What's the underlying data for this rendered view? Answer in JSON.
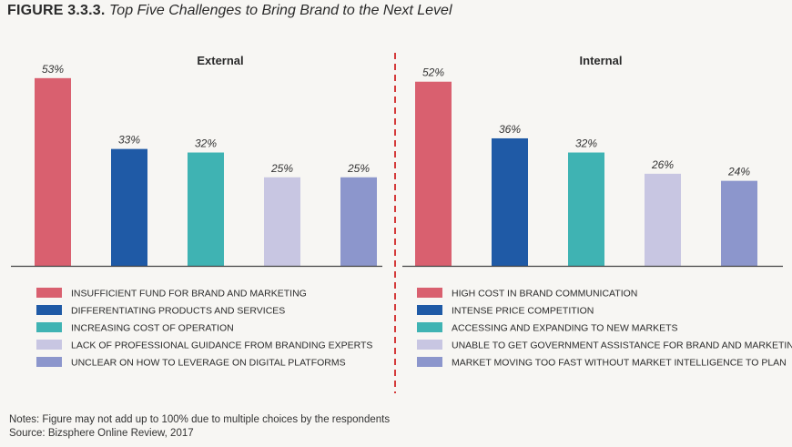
{
  "figure": {
    "number": "FIGURE 3.3.3.",
    "title": "Top Five Challenges to Bring Brand to the Next Level"
  },
  "colors": {
    "red": "#d9606f",
    "blue": "#1f5aa6",
    "teal": "#3fb3b3",
    "lavender": "#c8c6e2",
    "periwinkle": "#8c96cc",
    "divider": "#d43a3a",
    "axis": "#444444"
  },
  "chart_data": [
    {
      "type": "bar",
      "title": "External",
      "ylim": [
        0,
        60
      ],
      "categories": [
        "INSUFFICIENT FUND FOR BRAND AND MARKETING",
        "DIFFERENTIATING PRODUCTS AND SERVICES",
        "INCREASING COST OF OPERATION",
        "LACK OF PROFESSIONAL GUIDANCE FROM BRANDING EXPERTS",
        "UNCLEAR ON HOW TO LEVERAGE ON DIGITAL PLATFORMS"
      ],
      "values": [
        53,
        33,
        32,
        25,
        25
      ],
      "labels": [
        "53%",
        "33%",
        "32%",
        "25%",
        "25%"
      ],
      "colors": [
        "#d9606f",
        "#1f5aa6",
        "#3fb3b3",
        "#c8c6e2",
        "#8c96cc"
      ]
    },
    {
      "type": "bar",
      "title": "Internal",
      "ylim": [
        0,
        60
      ],
      "categories": [
        "HIGH COST IN BRAND COMMUNICATION",
        "INTENSE PRICE COMPETITION",
        "ACCESSING AND EXPANDING TO NEW MARKETS",
        "UNABLE TO GET GOVERNMENT ASSISTANCE FOR BRAND AND MARKETING",
        "MARKET MOVING TOO FAST WITHOUT MARKET INTELLIGENCE TO PLAN"
      ],
      "values": [
        52,
        36,
        32,
        26,
        24
      ],
      "labels": [
        "52%",
        "36%",
        "32%",
        "26%",
        "24%"
      ],
      "colors": [
        "#d9606f",
        "#1f5aa6",
        "#3fb3b3",
        "#c8c6e2",
        "#8c96cc"
      ]
    }
  ],
  "notes": {
    "line1": "Notes: Figure may not add up to 100% due to multiple choices by the respondents",
    "line2": "Source: Bizsphere Online Review, 2017"
  }
}
